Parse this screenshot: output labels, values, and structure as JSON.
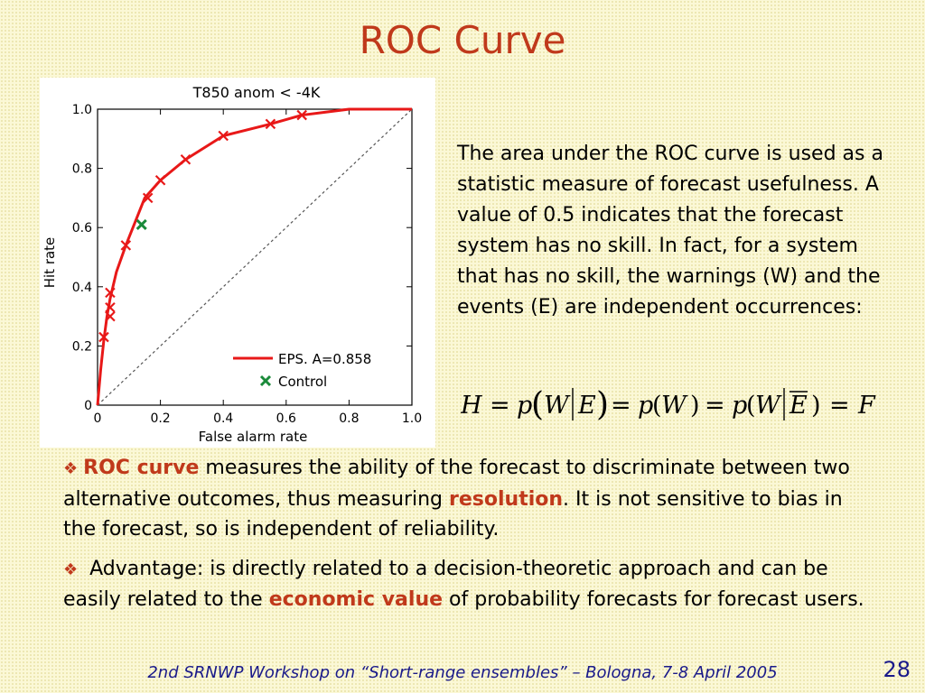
{
  "slide": {
    "title": "ROC Curve",
    "footer": "2nd SRNWP Workshop on “Short-range ensembles” – Bologna, 7-8 April 2005",
    "page_number": "28"
  },
  "description": {
    "paragraph": "The area under the ROC curve is used as a statistic measure of forecast usefulness. A value of 0.5 indicates that the forecast system has no skill. In fact, for a system that has no skill, the warnings (W) and the events (E) are independent occurrences:"
  },
  "formula": {
    "H": "H",
    "eq": "=",
    "p": "p",
    "W": "W",
    "E": "E",
    "open": "(",
    "close": ")",
    "F": "F"
  },
  "bullets": [
    {
      "marker": "❖",
      "highlight1": "ROC curve",
      "text1": " measures the ability of the forecast to discriminate between two alternative outcomes, thus measuring ",
      "highlight2": "resolution",
      "text2": ". It is not sensitive to bias in the forecast, so is independent of reliability."
    },
    {
      "marker": "❖",
      "text1": " Advantage: is directly related to a decision-theoretic approach and can be easily related to the ",
      "highlight1": "economic value",
      "text2": " of probability forecasts for forecast users."
    }
  ],
  "colors": {
    "title": "#c0391b",
    "highlight": "#c0391b",
    "eps_curve": "#e81818",
    "control_marker": "#1a8a3a",
    "footer": "#1a1a8a"
  },
  "chart_data": {
    "type": "line",
    "title": "T850 anom < -4K",
    "xlabel": "False alarm rate",
    "ylabel": "Hit rate",
    "xlim": [
      0,
      1
    ],
    "ylim": [
      0,
      1
    ],
    "xticks": [
      "0",
      "0.2",
      "0.4",
      "0.6",
      "0.8",
      "1.0"
    ],
    "yticks": [
      "0",
      "0.2",
      "0.4",
      "0.6",
      "0.8",
      "1.0"
    ],
    "diagonal": true,
    "legend_position": "bottom-right",
    "series": [
      {
        "name": "EPS. A=0.858",
        "color": "#e81818",
        "curve": [
          [
            0,
            0
          ],
          [
            0.01,
            0.12
          ],
          [
            0.02,
            0.22
          ],
          [
            0.03,
            0.3
          ],
          [
            0.04,
            0.36
          ],
          [
            0.06,
            0.45
          ],
          [
            0.09,
            0.54
          ],
          [
            0.12,
            0.62
          ],
          [
            0.15,
            0.7
          ],
          [
            0.2,
            0.76
          ],
          [
            0.28,
            0.83
          ],
          [
            0.4,
            0.91
          ],
          [
            0.55,
            0.95
          ],
          [
            0.65,
            0.98
          ],
          [
            0.8,
            1.0
          ],
          [
            1.0,
            1.0
          ]
        ],
        "markers": [
          [
            0.02,
            0.23
          ],
          [
            0.04,
            0.3
          ],
          [
            0.04,
            0.33
          ],
          [
            0.04,
            0.38
          ],
          [
            0.09,
            0.54
          ],
          [
            0.16,
            0.7
          ],
          [
            0.2,
            0.76
          ],
          [
            0.28,
            0.83
          ],
          [
            0.4,
            0.91
          ],
          [
            0.55,
            0.95
          ],
          [
            0.65,
            0.98
          ]
        ]
      },
      {
        "name": "Control",
        "color": "#1a8a3a",
        "markers": [
          [
            0.14,
            0.61
          ]
        ]
      }
    ]
  }
}
